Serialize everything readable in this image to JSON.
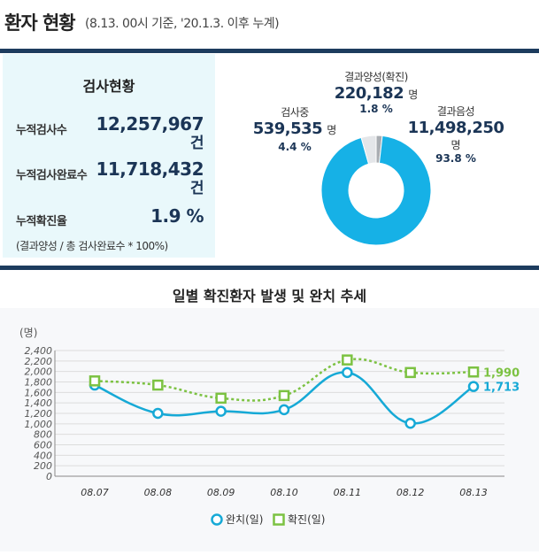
{
  "header": {
    "title": "환자 현황",
    "subtitle": "(8.13. 00시 기준, '20.1.3. 이후 누계)"
  },
  "test_status": {
    "title": "검사현황",
    "rows": [
      {
        "label": "누적검사수",
        "value": "12,257,967",
        "unit": "건"
      },
      {
        "label": "누적검사완료수",
        "value": "11,718,432",
        "unit": "건"
      },
      {
        "label": "누적확진율",
        "value": "1.9 %",
        "unit": ""
      }
    ],
    "note": "(결과양성 / 총 검사완료수 * 100%)"
  },
  "donut": {
    "positive": {
      "name": "결과양성(확진)",
      "value": "220,182",
      "unit": "명",
      "pct": "1.8 %",
      "fraction": 0.018,
      "color": "#a9adb2"
    },
    "testing": {
      "name": "검사중",
      "value": "539,535",
      "unit": "명",
      "pct": "4.4 %",
      "fraction": 0.044,
      "color": "#e4e6e9"
    },
    "negative": {
      "name": "결과음성",
      "value": "11,498,250",
      "unit": "명",
      "pct": "93.8 %",
      "fraction": 0.938,
      "color": "#16b1e6"
    }
  },
  "chart_title": "일별 확진환자 발생 및 완치 추세",
  "chart_data": {
    "type": "line",
    "ylabel": "(명)",
    "ylim": [
      0,
      2400
    ],
    "yticks": [
      0,
      200,
      400,
      600,
      800,
      1000,
      1200,
      1400,
      1600,
      1800,
      2000,
      2200,
      2400
    ],
    "categories": [
      "08.07",
      "08.08",
      "08.09",
      "08.10",
      "08.11",
      "08.12",
      "08.13"
    ],
    "series": [
      {
        "name": "완치(일)",
        "values": [
          1740,
          1200,
          1240,
          1270,
          1980,
          1010,
          1713
        ],
        "color": "#16a9d6",
        "marker": "circle",
        "end_label": "1,713"
      },
      {
        "name": "확진(일)",
        "values": [
          1820,
          1740,
          1490,
          1540,
          2220,
          1980,
          1990
        ],
        "color": "#7cc242",
        "marker": "square",
        "end_label": "1,990"
      }
    ],
    "legend_position": "bottom-center"
  }
}
